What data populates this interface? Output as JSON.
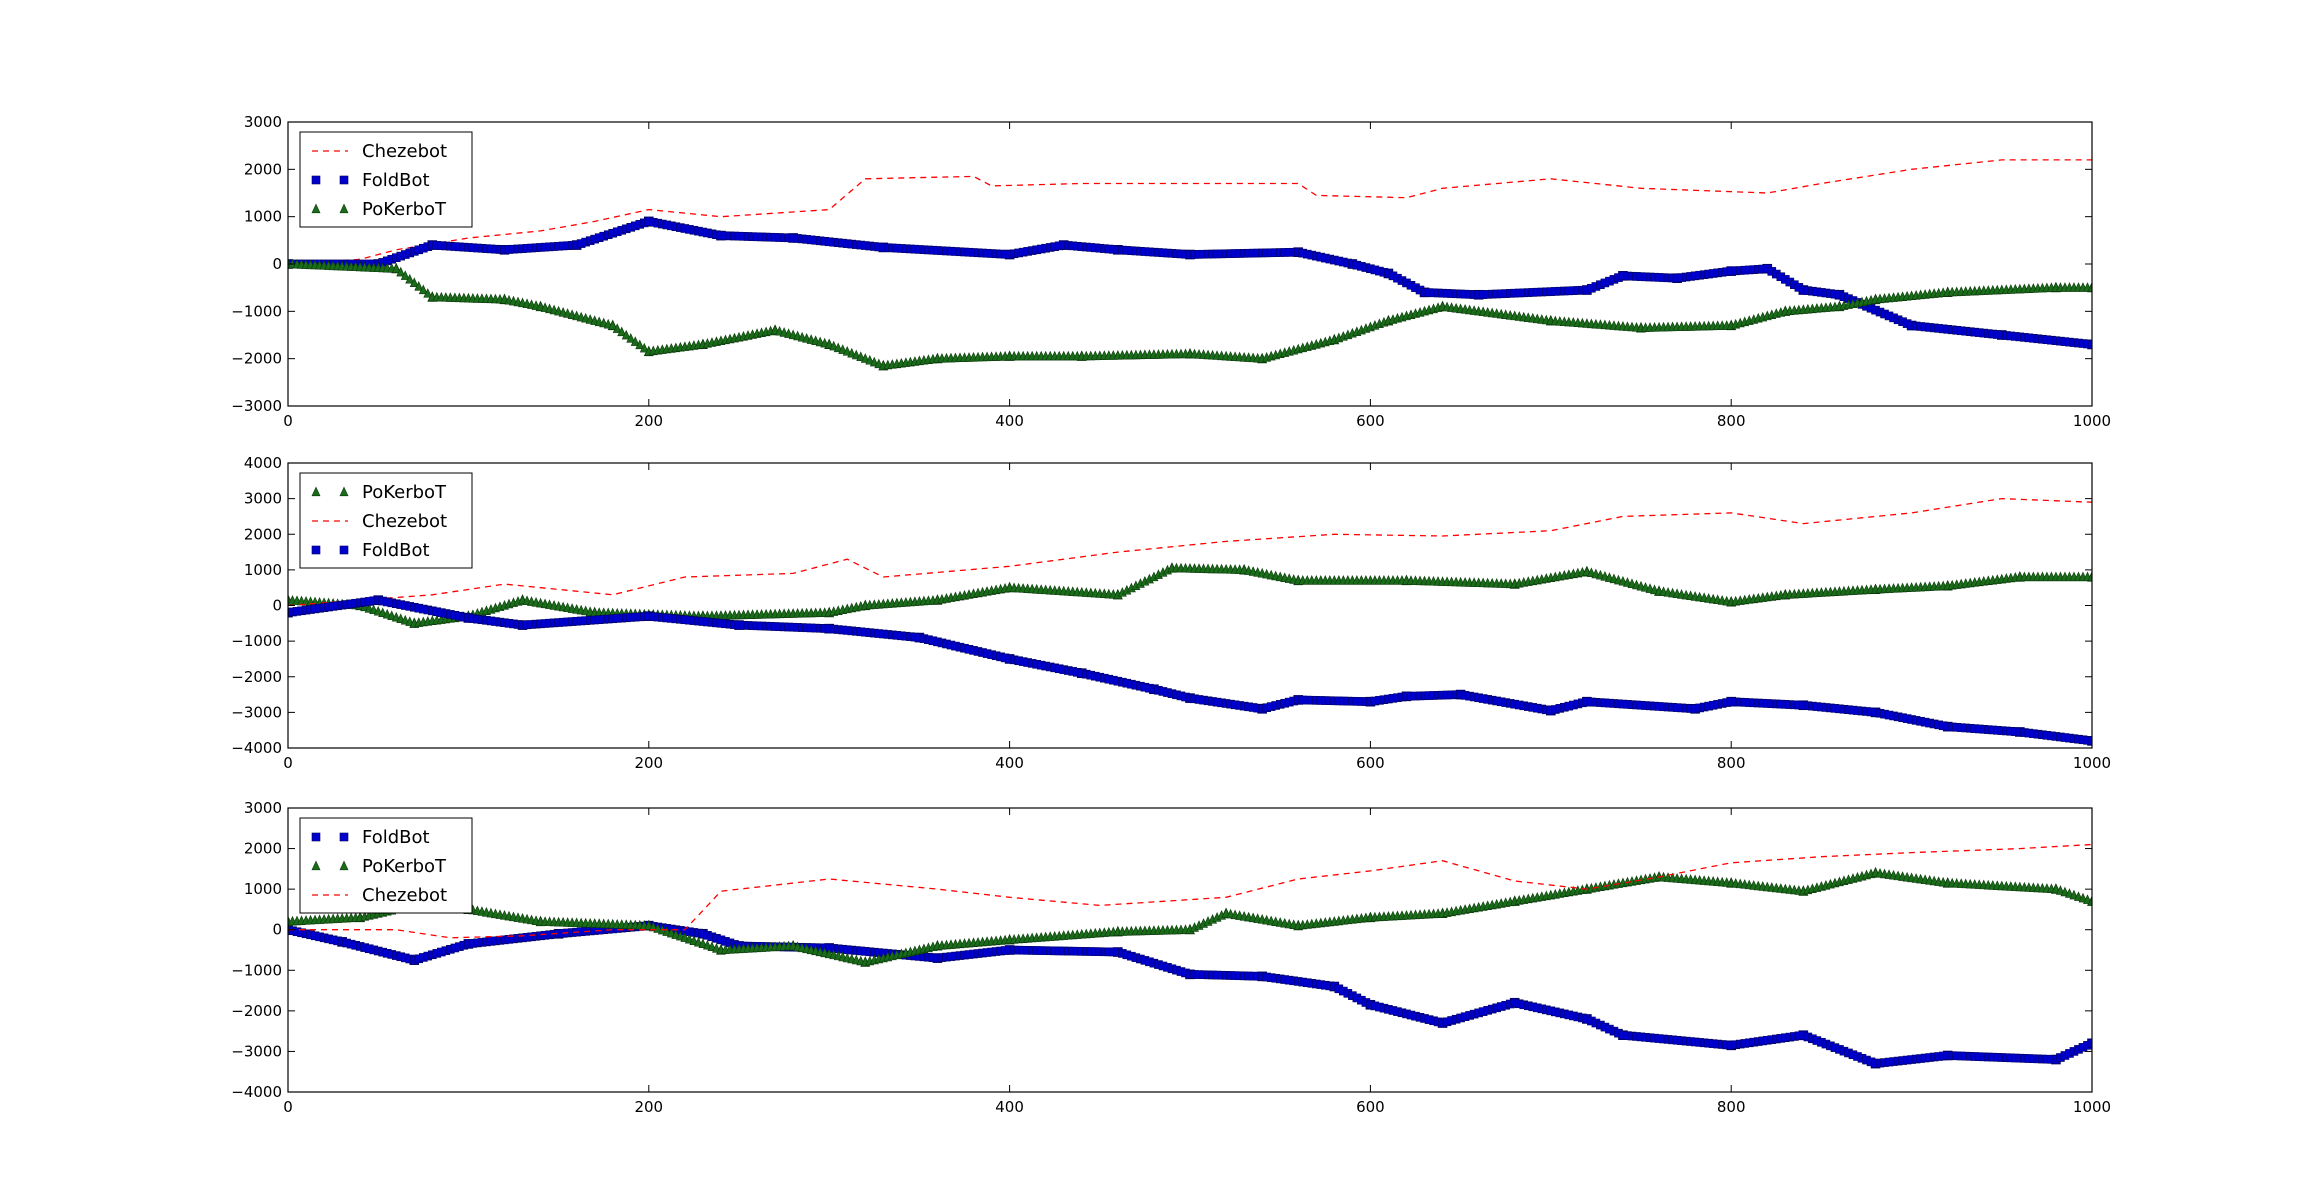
{
  "chart_data": [
    {
      "type": "line",
      "xlim": [
        0,
        1000
      ],
      "ylim": [
        -3000,
        3000
      ],
      "xticks": [
        0,
        200,
        400,
        600,
        800,
        1000
      ],
      "yticks": [
        -3000,
        -2000,
        -1000,
        0,
        1000,
        2000,
        3000
      ],
      "xtick_labels": [
        "0",
        "200",
        "400",
        "600",
        "800",
        "1000"
      ],
      "ytick_labels": [
        "−3000",
        "−2000",
        "−1000",
        "0",
        "1000",
        "2000",
        "3000"
      ],
      "grid": false,
      "legend_position": "upper-left",
      "legend_order": [
        "Chezebot",
        "FoldBot",
        "PoKerboT"
      ],
      "series": [
        {
          "name": "Chezebot",
          "style": "dashed",
          "color": "#ff0000",
          "x": [
            0,
            40,
            60,
            100,
            140,
            170,
            200,
            240,
            300,
            320,
            380,
            390,
            440,
            500,
            560,
            570,
            620,
            640,
            700,
            750,
            820,
            850,
            900,
            950,
            1000
          ],
          "y": [
            0,
            100,
            300,
            550,
            700,
            900,
            1150,
            1000,
            1150,
            1800,
            1850,
            1650,
            1700,
            1700,
            1700,
            1450,
            1400,
            1600,
            1800,
            1600,
            1500,
            1700,
            2000,
            2200,
            2200
          ]
        },
        {
          "name": "FoldBot",
          "style": "square",
          "color": "#0000cc",
          "x": [
            0,
            50,
            80,
            120,
            160,
            200,
            240,
            280,
            330,
            400,
            430,
            460,
            500,
            560,
            590,
            610,
            630,
            660,
            720,
            740,
            770,
            800,
            820,
            840,
            860,
            900,
            950,
            1000
          ],
          "y": [
            0,
            0,
            400,
            300,
            400,
            900,
            600,
            550,
            350,
            200,
            400,
            300,
            200,
            250,
            0,
            -200,
            -600,
            -650,
            -550,
            -250,
            -300,
            -150,
            -100,
            -550,
            -650,
            -1300,
            -1500,
            -1700
          ]
        },
        {
          "name": "PoKerboT",
          "style": "triangle",
          "color": "#1a6b1a",
          "x": [
            0,
            60,
            80,
            120,
            140,
            180,
            200,
            230,
            270,
            300,
            330,
            360,
            400,
            440,
            500,
            540,
            580,
            610,
            640,
            700,
            750,
            800,
            830,
            860,
            880,
            920,
            980,
            1000
          ],
          "y": [
            0,
            -100,
            -700,
            -750,
            -900,
            -1300,
            -1850,
            -1700,
            -1400,
            -1700,
            -2150,
            -2000,
            -1950,
            -1950,
            -1900,
            -2000,
            -1600,
            -1200,
            -900,
            -1200,
            -1350,
            -1300,
            -1000,
            -900,
            -750,
            -600,
            -500,
            -500
          ]
        }
      ]
    },
    {
      "type": "line",
      "xlim": [
        0,
        1000
      ],
      "ylim": [
        -4000,
        4000
      ],
      "xticks": [
        0,
        200,
        400,
        600,
        800,
        1000
      ],
      "yticks": [
        -4000,
        -3000,
        -2000,
        -1000,
        0,
        1000,
        2000,
        3000,
        4000
      ],
      "xtick_labels": [
        "0",
        "200",
        "400",
        "600",
        "800",
        "1000"
      ],
      "ytick_labels": [
        "−4000",
        "−3000",
        "−2000",
        "−1000",
        "0",
        "1000",
        "2000",
        "3000",
        "4000"
      ],
      "grid": false,
      "legend_position": "upper-left",
      "legend_order": [
        "PoKerboT",
        "Chezebot",
        "FoldBot"
      ],
      "series": [
        {
          "name": "PoKerboT",
          "style": "triangle",
          "color": "#1a6b1a",
          "x": [
            0,
            40,
            70,
            100,
            130,
            170,
            230,
            300,
            320,
            360,
            400,
            460,
            490,
            530,
            560,
            620,
            680,
            720,
            760,
            800,
            830,
            880,
            920,
            960,
            1000
          ],
          "y": [
            150,
            0,
            -500,
            -300,
            150,
            -200,
            -300,
            -200,
            0,
            150,
            500,
            300,
            1050,
            1000,
            700,
            700,
            600,
            950,
            400,
            100,
            300,
            450,
            550,
            800,
            800
          ]
        },
        {
          "name": "Chezebot",
          "style": "dashed",
          "color": "#ff0000",
          "x": [
            0,
            80,
            120,
            180,
            220,
            280,
            310,
            330,
            400,
            460,
            520,
            580,
            640,
            700,
            740,
            800,
            840,
            900,
            950,
            1000
          ],
          "y": [
            0,
            300,
            600,
            300,
            800,
            900,
            1300,
            800,
            1100,
            1500,
            1800,
            2000,
            1950,
            2100,
            2500,
            2600,
            2300,
            2600,
            3000,
            2900
          ]
        },
        {
          "name": "FoldBot",
          "style": "square",
          "color": "#0000cc",
          "x": [
            0,
            50,
            100,
            130,
            200,
            250,
            300,
            350,
            400,
            440,
            480,
            500,
            540,
            560,
            600,
            620,
            650,
            700,
            720,
            780,
            800,
            840,
            880,
            920,
            960,
            1000
          ],
          "y": [
            -200,
            150,
            -350,
            -550,
            -300,
            -550,
            -650,
            -900,
            -1500,
            -1900,
            -2350,
            -2600,
            -2900,
            -2650,
            -2700,
            -2550,
            -2500,
            -2950,
            -2700,
            -2900,
            -2700,
            -2800,
            -3000,
            -3400,
            -3550,
            -3800
          ]
        }
      ]
    },
    {
      "type": "line",
      "xlim": [
        0,
        1000
      ],
      "ylim": [
        -4000,
        3000
      ],
      "xticks": [
        0,
        200,
        400,
        600,
        800,
        1000
      ],
      "yticks": [
        -4000,
        -3000,
        -2000,
        -1000,
        0,
        1000,
        2000,
        3000
      ],
      "xtick_labels": [
        "0",
        "200",
        "400",
        "600",
        "800",
        "1000"
      ],
      "ytick_labels": [
        "−4000",
        "−3000",
        "−2000",
        "−1000",
        "0",
        "1000",
        "2000",
        "3000"
      ],
      "grid": false,
      "legend_position": "upper-left",
      "legend_order": [
        "FoldBot",
        "PoKerboT",
        "Chezebot"
      ],
      "series": [
        {
          "name": "FoldBot",
          "style": "square",
          "color": "#0000cc",
          "x": [
            0,
            30,
            70,
            100,
            150,
            200,
            230,
            250,
            300,
            360,
            400,
            460,
            500,
            540,
            580,
            600,
            640,
            680,
            720,
            740,
            800,
            840,
            880,
            920,
            980,
            1000
          ],
          "y": [
            0,
            -300,
            -750,
            -350,
            -100,
            100,
            -100,
            -400,
            -450,
            -700,
            -500,
            -550,
            -1100,
            -1150,
            -1400,
            -1850,
            -2300,
            -1800,
            -2200,
            -2600,
            -2850,
            -2600,
            -3300,
            -3100,
            -3200,
            -2800
          ]
        },
        {
          "name": "PoKerboT",
          "style": "triangle",
          "color": "#1a6b1a",
          "x": [
            0,
            40,
            70,
            100,
            140,
            200,
            240,
            280,
            320,
            360,
            400,
            460,
            500,
            520,
            560,
            600,
            640,
            680,
            720,
            760,
            800,
            840,
            880,
            920,
            980,
            1000
          ],
          "y": [
            200,
            300,
            600,
            500,
            200,
            100,
            -500,
            -400,
            -800,
            -400,
            -250,
            -50,
            0,
            400,
            100,
            300,
            400,
            700,
            1000,
            1300,
            1150,
            950,
            1400,
            1150,
            1000,
            700
          ]
        },
        {
          "name": "Chezebot",
          "style": "dashed",
          "color": "#ff0000",
          "x": [
            0,
            60,
            90,
            130,
            180,
            220,
            240,
            300,
            360,
            400,
            450,
            520,
            560,
            600,
            640,
            680,
            720,
            760,
            800,
            850,
            900,
            960,
            1000
          ],
          "y": [
            0,
            0,
            -200,
            -150,
            0,
            0,
            950,
            1250,
            1000,
            800,
            600,
            800,
            1250,
            1450,
            1700,
            1200,
            1000,
            1300,
            1650,
            1800,
            1900,
            2000,
            2100
          ]
        }
      ]
    }
  ]
}
